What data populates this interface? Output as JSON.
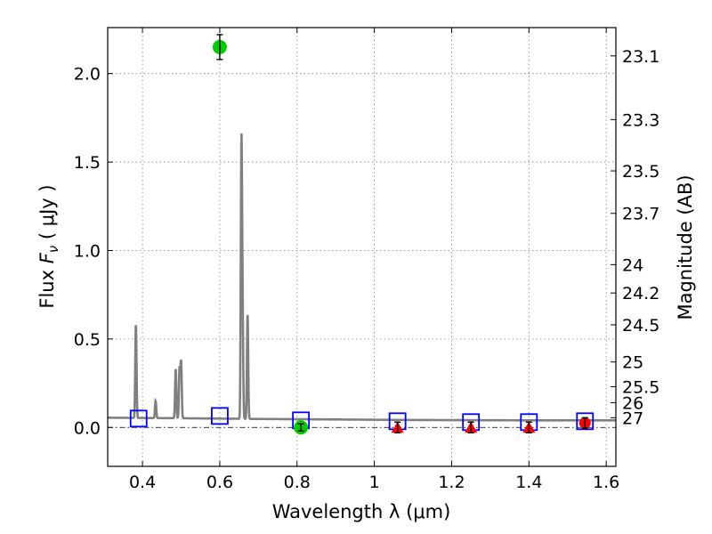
{
  "chart_data": {
    "type": "scatter",
    "xlabel": "Wavelength  λ (μm)",
    "ylabel": "Flux  F_ν  ( μJy )",
    "ylabel_right": "Magnitude (AB)",
    "xlim": [
      0.31,
      1.625
    ],
    "ylim": [
      -0.22,
      2.26
    ],
    "grid": true,
    "x_ticks": [
      {
        "value": 0.4,
        "label": "0.4"
      },
      {
        "value": 0.6,
        "label": "0.6"
      },
      {
        "value": 0.8,
        "label": "0.8"
      },
      {
        "value": 1.0,
        "label": "1"
      },
      {
        "value": 1.2,
        "label": "1.2"
      },
      {
        "value": 1.4,
        "label": "1.4"
      },
      {
        "value": 1.6,
        "label": "1.6"
      }
    ],
    "y_ticks": [
      {
        "value": 0.0,
        "label": "0.0"
      },
      {
        "value": 0.5,
        "label": "0.5"
      },
      {
        "value": 1.0,
        "label": "1.0"
      },
      {
        "value": 1.5,
        "label": "1.5"
      },
      {
        "value": 2.0,
        "label": "2.0"
      }
    ],
    "mag_ticks": [
      {
        "flux": 2.1,
        "label": "23.1"
      },
      {
        "flux": 1.74,
        "label": "23.3"
      },
      {
        "flux": 1.45,
        "label": "23.5"
      },
      {
        "flux": 1.21,
        "label": "23.7"
      },
      {
        "flux": 0.92,
        "label": "24"
      },
      {
        "flux": 0.76,
        "label": "24.2"
      },
      {
        "flux": 0.58,
        "label": "24.5"
      },
      {
        "flux": 0.37,
        "label": "25"
      },
      {
        "flux": 0.23,
        "label": "25.5"
      },
      {
        "flux": 0.14,
        "label": "26"
      },
      {
        "flux": 0.055,
        "label": "27"
      }
    ],
    "series": [
      {
        "name": "model spectrum",
        "style": "line",
        "color": "#808080",
        "continuum": [
          [
            0.31,
            0.055
          ],
          [
            0.5,
            0.052
          ],
          [
            0.7,
            0.048
          ],
          [
            0.9,
            0.045
          ],
          [
            1.1,
            0.042
          ],
          [
            1.4,
            0.04
          ],
          [
            1.625,
            0.04
          ]
        ],
        "emission_lines": [
          {
            "x": 0.383,
            "peak": 0.58
          },
          {
            "x": 0.434,
            "peak": 0.15
          },
          {
            "x": 0.486,
            "peak": 0.33
          },
          {
            "x": 0.496,
            "peak": 0.33
          },
          {
            "x": 0.5,
            "peak": 0.37
          },
          {
            "x": 0.656,
            "peak": 1.55
          },
          {
            "x": 0.659,
            "peak": 0.62
          },
          {
            "x": 0.672,
            "peak": 0.64
          }
        ]
      },
      {
        "name": "model band fluxes",
        "style": "open-square",
        "color": "#0000ff",
        "points": [
          [
            0.39,
            0.05
          ],
          [
            0.6,
            0.065
          ],
          [
            0.81,
            0.04
          ],
          [
            1.06,
            0.035
          ],
          [
            1.25,
            0.03
          ],
          [
            1.4,
            0.03
          ],
          [
            1.545,
            0.035
          ]
        ]
      },
      {
        "name": "detections",
        "style": "circle",
        "color": "#00cc00",
        "points": [
          {
            "x": 0.6,
            "y": 2.15,
            "err": 0.07
          },
          {
            "x": 0.81,
            "y": 0.0,
            "err": 0.02
          }
        ]
      },
      {
        "name": "upper limits",
        "style": "triangle",
        "color": "#ff0000",
        "points": [
          {
            "x": 1.06,
            "y": 0.0,
            "err": 0.03
          },
          {
            "x": 1.25,
            "y": 0.0,
            "err": 0.03
          },
          {
            "x": 1.4,
            "y": 0.0,
            "err": 0.03
          }
        ]
      },
      {
        "name": "faint detection",
        "style": "circle",
        "color": "#ff0000",
        "points": [
          {
            "x": 1.545,
            "y": 0.025,
            "err": 0.03
          }
        ]
      }
    ]
  }
}
